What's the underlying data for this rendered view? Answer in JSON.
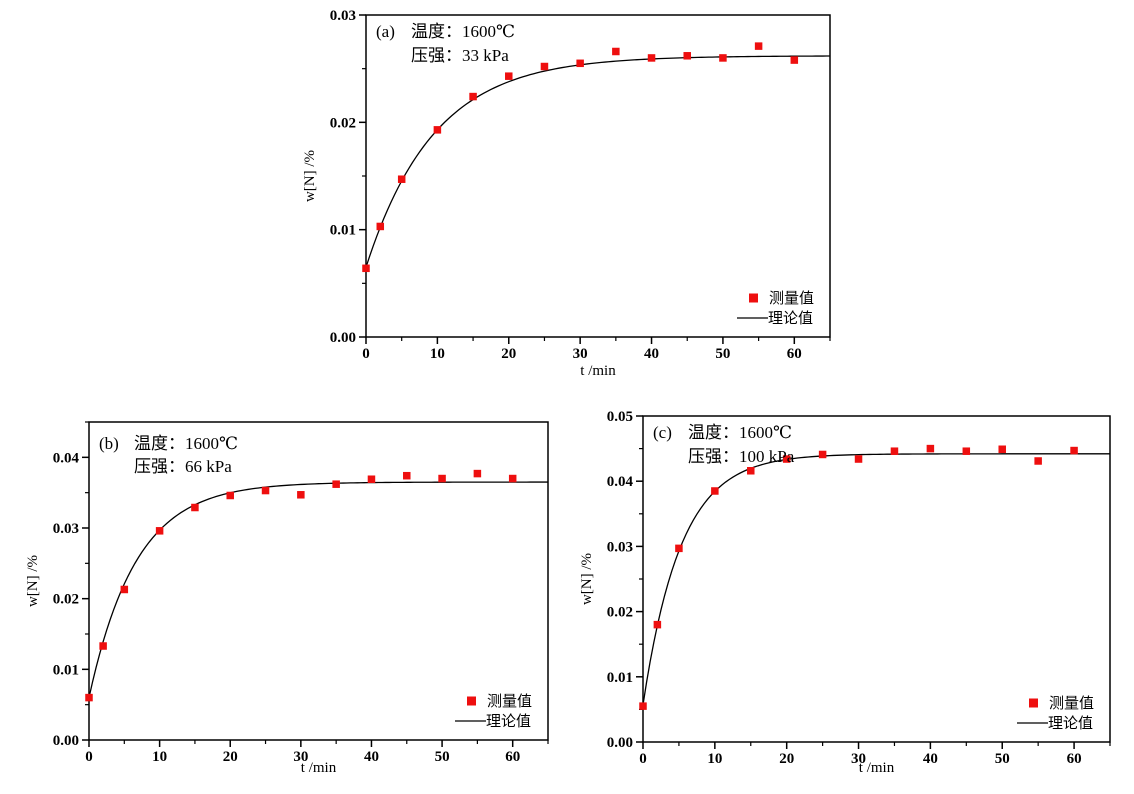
{
  "page": {
    "background": "#ffffff",
    "description_colors": {
      "marker_red": "#ee0f0f",
      "curve_black": "#000000"
    }
  },
  "chart_data": [
    {
      "type": "scatter",
      "panel_label": "(a)",
      "annotation_line1": "温度：1600℃",
      "annotation_line2": "压强：33 kPa",
      "xlabel": "t /min",
      "ylabel": "w[N] /%",
      "xlim": [
        0,
        65
      ],
      "ylim": [
        0,
        0.03
      ],
      "xticks": [
        0,
        10,
        20,
        30,
        40,
        50,
        60
      ],
      "yticks": [
        {
          "v": 0.0,
          "label": "0.00"
        },
        {
          "v": 0.01,
          "label": "0.01"
        },
        {
          "v": 0.02,
          "label": "0.02"
        },
        {
          "v": 0.03,
          "label": "0.03"
        }
      ],
      "x_minor_step": 5,
      "y_minor_step": 0.005,
      "grid": false,
      "legend_position": "lower-right-inside",
      "legend": [
        {
          "label": "测量值",
          "swatch": "marker",
          "color": "#ee0f0f"
        },
        {
          "label": "理论值",
          "swatch": "line",
          "color": "#000000"
        }
      ],
      "series": [
        {
          "name": "测量值",
          "type": "scatter",
          "marker": "square",
          "color": "#ee0f0f",
          "x": [
            0,
            2,
            5,
            10,
            15,
            20,
            25,
            30,
            35,
            40,
            45,
            50,
            55,
            60
          ],
          "y": [
            0.0064,
            0.0103,
            0.0147,
            0.0193,
            0.0224,
            0.0243,
            0.0252,
            0.0255,
            0.0266,
            0.026,
            0.0262,
            0.026,
            0.0271,
            0.0258
          ]
        },
        {
          "name": "理论值",
          "type": "line",
          "color": "#000000",
          "model": "w(t) = w_inf - (w_inf - w0) * exp(-k*t)",
          "params": {
            "w0": 0.0065,
            "w_inf": 0.0262,
            "k": 0.105
          }
        }
      ]
    },
    {
      "type": "scatter",
      "panel_label": "(b)",
      "annotation_line1": "温度：1600℃",
      "annotation_line2": "压强：66 kPa",
      "xlabel": "t /min",
      "ylabel": "w[N] /%",
      "xlim": [
        0,
        65
      ],
      "ylim": [
        0,
        0.045
      ],
      "xticks": [
        0,
        10,
        20,
        30,
        40,
        50,
        60
      ],
      "yticks": [
        {
          "v": 0.0,
          "label": "0.00"
        },
        {
          "v": 0.01,
          "label": "0.01"
        },
        {
          "v": 0.02,
          "label": "0.02"
        },
        {
          "v": 0.03,
          "label": "0.03"
        },
        {
          "v": 0.04,
          "label": "0.04"
        }
      ],
      "x_minor_step": 5,
      "y_minor_step": 0.005,
      "grid": false,
      "legend_position": "lower-right-inside",
      "legend": [
        {
          "label": "测量值",
          "swatch": "marker",
          "color": "#ee0f0f"
        },
        {
          "label": "理论值",
          "swatch": "line",
          "color": "#000000"
        }
      ],
      "series": [
        {
          "name": "测量值",
          "type": "scatter",
          "marker": "square",
          "color": "#ee0f0f",
          "x": [
            0,
            2,
            5,
            10,
            15,
            20,
            25,
            30,
            35,
            40,
            45,
            50,
            55,
            60
          ],
          "y": [
            0.006,
            0.0133,
            0.0213,
            0.0296,
            0.0329,
            0.0346,
            0.0353,
            0.0347,
            0.0362,
            0.0369,
            0.0374,
            0.037,
            0.0377,
            0.037
          ]
        },
        {
          "name": "理论值",
          "type": "line",
          "color": "#000000",
          "model": "w(t) = w_inf - (w_inf - w0) * exp(-k*t)",
          "params": {
            "w0": 0.006,
            "w_inf": 0.0365,
            "k": 0.15
          }
        }
      ]
    },
    {
      "type": "scatter",
      "panel_label": "(c)",
      "annotation_line1": "温度：1600℃",
      "annotation_line2": "压强：100 kPa",
      "xlabel": "t /min",
      "ylabel": "w[N] /%",
      "xlim": [
        0,
        65
      ],
      "ylim": [
        0,
        0.05
      ],
      "xticks": [
        0,
        10,
        20,
        30,
        40,
        50,
        60
      ],
      "yticks": [
        {
          "v": 0.0,
          "label": "0.00"
        },
        {
          "v": 0.01,
          "label": "0.01"
        },
        {
          "v": 0.02,
          "label": "0.02"
        },
        {
          "v": 0.03,
          "label": "0.03"
        },
        {
          "v": 0.04,
          "label": "0.04"
        },
        {
          "v": 0.05,
          "label": "0.05"
        }
      ],
      "x_minor_step": 5,
      "y_minor_step": 0.005,
      "grid": false,
      "legend_position": "lower-right-inside",
      "legend": [
        {
          "label": "测量值",
          "swatch": "marker",
          "color": "#ee0f0f"
        },
        {
          "label": "理论值",
          "swatch": "line",
          "color": "#000000"
        }
      ],
      "series": [
        {
          "name": "测量值",
          "type": "scatter",
          "marker": "square",
          "color": "#ee0f0f",
          "x": [
            0,
            2,
            5,
            10,
            15,
            20,
            25,
            30,
            35,
            40,
            45,
            50,
            55,
            60
          ],
          "y": [
            0.0055,
            0.018,
            0.0297,
            0.0385,
            0.0416,
            0.0434,
            0.0441,
            0.0434,
            0.0446,
            0.045,
            0.0446,
            0.0449,
            0.0431,
            0.0447
          ]
        },
        {
          "name": "理论值",
          "type": "line",
          "color": "#000000",
          "model": "w(t) = w_inf - (w_inf - w0) * exp(-k*t)",
          "params": {
            "w0": 0.0057,
            "w_inf": 0.0442,
            "k": 0.19
          }
        }
      ]
    }
  ]
}
